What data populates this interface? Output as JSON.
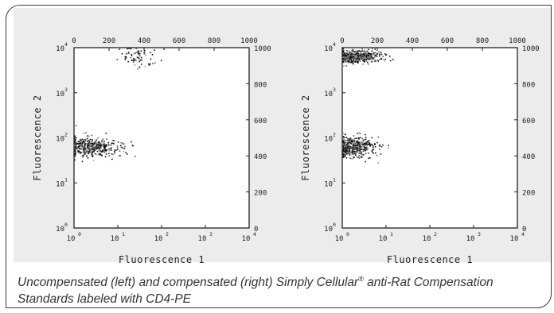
{
  "caption": {
    "part1": "Uncompensated (left) and compensated (right) Simply Cellular",
    "mark": "®",
    "part2": " anti-Rat Compensation Standards labeled with CD4-PE"
  },
  "chart_data": [
    {
      "type": "scatter",
      "panel": "Uncompensated",
      "xlabel": "Fluorescence 1",
      "ylabel": "Fluorescence 2",
      "x_log_ticks": [
        "10",
        "10",
        "10",
        "10",
        "10"
      ],
      "x_log_exps": [
        "0",
        "1",
        "2",
        "3",
        "4"
      ],
      "y_log_ticks": [
        "10",
        "10",
        "10",
        "10",
        "10"
      ],
      "y_log_exps": [
        "0",
        "1",
        "2",
        "3",
        "4"
      ],
      "x_lin_ticks": [
        "0",
        "200",
        "400",
        "600",
        "800",
        "1000"
      ],
      "y_lin_ticks": [
        "0",
        "200",
        "400",
        "600",
        "800",
        "1000"
      ],
      "log_range": [
        1,
        10000
      ],
      "lin_range": [
        0,
        1000
      ],
      "populations": [
        {
          "x_log_center": 1.8,
          "x_log_spread": 0.7,
          "y_log_center": 65,
          "y_log_spread": 0.18,
          "density": "high"
        },
        {
          "x_log_center": 28,
          "x_log_spread": 0.35,
          "y_log_center": 6500,
          "y_log_spread": 0.25,
          "density": "low"
        }
      ]
    },
    {
      "type": "scatter",
      "panel": "Compensated",
      "xlabel": "Fluorescence 1",
      "ylabel": "Fluorescence 2",
      "x_log_ticks": [
        "10",
        "10",
        "10",
        "10",
        "10"
      ],
      "x_log_exps": [
        "0",
        "1",
        "2",
        "3",
        "4"
      ],
      "y_log_ticks": [
        "10",
        "10",
        "10",
        "10",
        "10"
      ],
      "y_log_exps": [
        "0",
        "1",
        "2",
        "3",
        "4"
      ],
      "x_lin_ticks": [
        "0",
        "200",
        "400",
        "600",
        "800",
        "1000"
      ],
      "y_lin_ticks": [
        "0",
        "200",
        "400",
        "600",
        "800",
        "1000"
      ],
      "log_range": [
        1,
        10000
      ],
      "lin_range": [
        0,
        1000
      ],
      "populations": [
        {
          "x_log_center": 1.8,
          "x_log_spread": 0.55,
          "y_log_center": 6500,
          "y_log_spread": 0.12,
          "density": "high"
        },
        {
          "x_log_center": 1.6,
          "x_log_spread": 0.5,
          "y_log_center": 65,
          "y_log_spread": 0.2,
          "density": "high"
        }
      ]
    }
  ]
}
